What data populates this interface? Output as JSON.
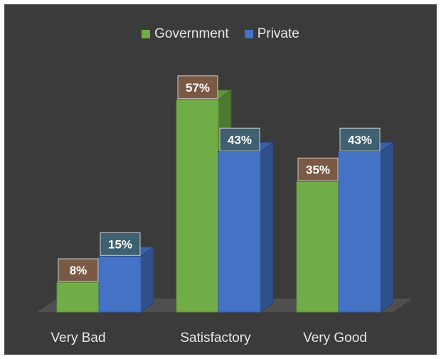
{
  "chart_data": {
    "type": "bar",
    "categories": [
      "Very Bad",
      "Satisfactory",
      "Very Good"
    ],
    "series": [
      {
        "name": "Government",
        "values": [
          8,
          57,
          35
        ],
        "labels": [
          "8%",
          "57%",
          "35%"
        ],
        "color": "#70ad47",
        "label_bg": "#7a5a45"
      },
      {
        "name": "Private",
        "values": [
          15,
          43,
          43
        ],
        "labels": [
          "15%",
          "43%",
          "43%"
        ],
        "color": "#4472c4",
        "label_bg": "#3e6070"
      }
    ],
    "ylim": [
      0,
      60
    ],
    "legend_position": "top-center",
    "style": "3d-clustered-column",
    "background": "#3b3b3b"
  }
}
